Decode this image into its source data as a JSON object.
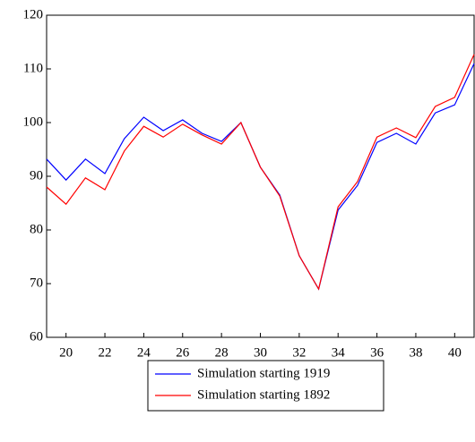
{
  "chart_data": {
    "type": "line",
    "x": [
      19,
      20,
      21,
      22,
      23,
      24,
      25,
      26,
      27,
      28,
      29,
      30,
      31,
      32,
      33,
      34,
      35,
      36,
      37,
      38,
      39,
      40,
      41
    ],
    "series": [
      {
        "name": "Simulation starting 1919",
        "color": "#0000ff",
        "values": [
          93.2,
          89.3,
          93.2,
          90.5,
          97,
          101,
          98.5,
          100.5,
          98,
          96.5,
          100,
          91.7,
          86.5,
          75.2,
          69,
          83.7,
          88.3,
          96.3,
          98,
          96,
          101.8,
          103.3,
          111
        ]
      },
      {
        "name": "Simulation starting 1892",
        "color": "#ff0000",
        "values": [
          88,
          84.8,
          89.7,
          87.5,
          94.7,
          99.3,
          97.3,
          99.7,
          97.7,
          96,
          100,
          91.7,
          86.3,
          75.2,
          69,
          84.3,
          89,
          97.3,
          99,
          97.2,
          103,
          104.7,
          112.7
        ]
      }
    ],
    "xlim": [
      19,
      41
    ],
    "xticks": [
      20,
      22,
      24,
      26,
      28,
      30,
      32,
      34,
      36,
      38,
      40
    ],
    "ylim": [
      60,
      120
    ],
    "yticks": [
      60,
      70,
      80,
      90,
      100,
      110,
      120
    ],
    "legend": "bottom"
  }
}
